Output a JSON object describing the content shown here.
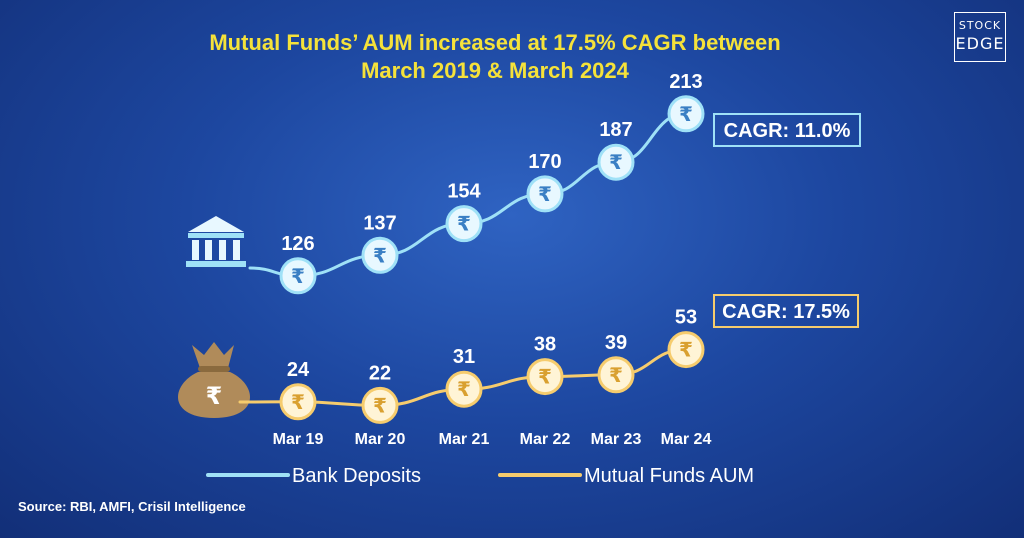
{
  "logo": {
    "line1": "STOCK",
    "line2": "EDGE"
  },
  "title_line1": "Mutual Funds’ AUM increased at 17.5% CAGR between",
  "title_line2": "March 2019 & March 2024",
  "source": "Source: RBI, AMFI, Crisil Intelligence",
  "colors": {
    "bank": "#9fe1f7",
    "bank_fill": "#e8f8ff",
    "mf": "#f6cc6d",
    "mf_fill": "#fff4d6",
    "title": "#f5e23a",
    "rupee_bank": "#3a7fc4",
    "rupee_mf": "#d9a030"
  },
  "icons": {
    "bank": "bank-building-icon",
    "mf": "money-bag-icon",
    "marker": "rupee-icon"
  },
  "chart_data": {
    "type": "line",
    "categories": [
      "Mar 19",
      "Mar 20",
      "Mar 21",
      "Mar 22",
      "Mar 23",
      "Mar 24"
    ],
    "series": [
      {
        "name": "Bank Deposits",
        "values": [
          126,
          137,
          154,
          170,
          187,
          213
        ],
        "cagr": "CAGR: 11.0%"
      },
      {
        "name": "Mutual Funds AUM",
        "values": [
          24,
          22,
          31,
          38,
          39,
          53
        ],
        "cagr": "CAGR: 17.5%"
      }
    ],
    "legend": "bottom",
    "grid": false
  }
}
